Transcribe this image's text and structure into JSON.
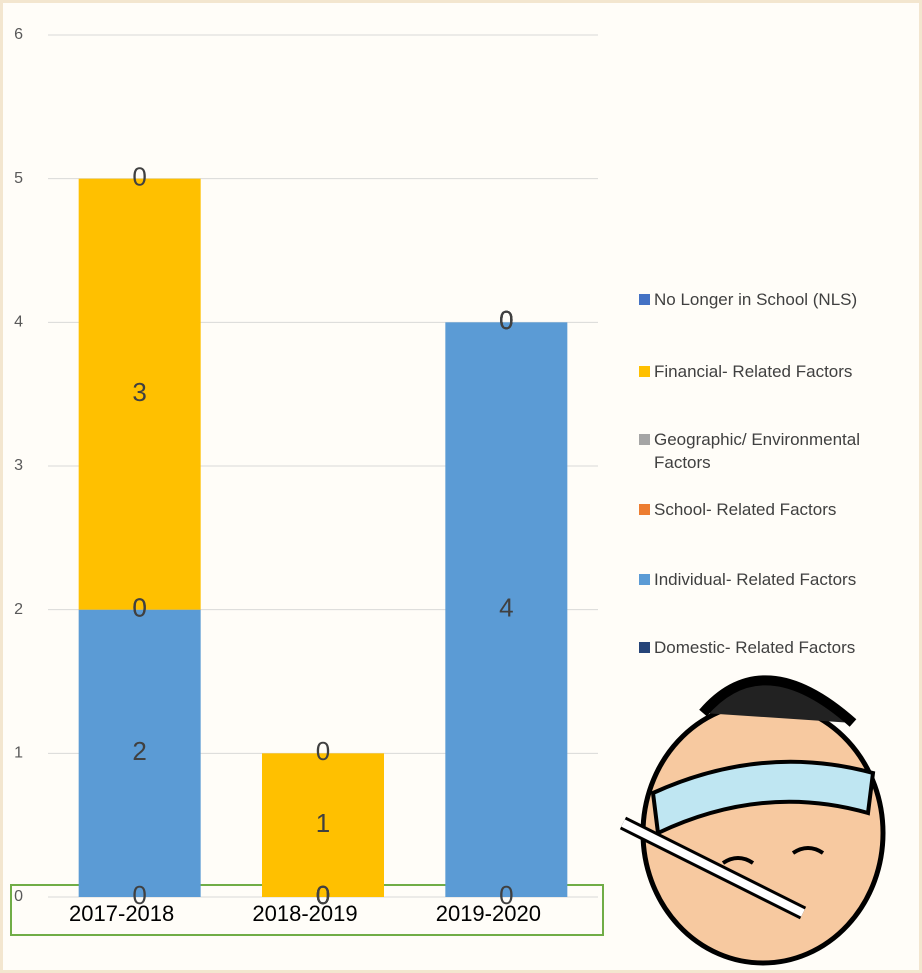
{
  "chart_data": {
    "type": "stacked_bar",
    "categories": [
      "2017-2018",
      "2018-2019",
      "2019-2020"
    ],
    "series": [
      {
        "name": "Domestic- Related Factors",
        "color": "#264478",
        "values": [
          0,
          0,
          0
        ]
      },
      {
        "name": "Individual- Related Factors",
        "color": "#5b9bd5",
        "values": [
          2,
          0,
          4
        ]
      },
      {
        "name": "School- Related Factors",
        "color": "#ed7d31",
        "values": [
          0,
          0,
          0
        ]
      },
      {
        "name": "Geographic/ Environmental Factors",
        "color": "#a5a5a5",
        "values": [
          0,
          0,
          0
        ]
      },
      {
        "name": "Financial- Related Factors",
        "color": "#ffc000",
        "values": [
          3,
          1,
          0
        ]
      },
      {
        "name": "No Longer in School (NLS)",
        "color": "#4472c4",
        "values": [
          0,
          0,
          0
        ]
      }
    ],
    "ylim": [
      0,
      6
    ],
    "yticks": [
      0,
      1,
      2,
      3,
      4,
      5,
      6
    ],
    "grid": true
  }
}
